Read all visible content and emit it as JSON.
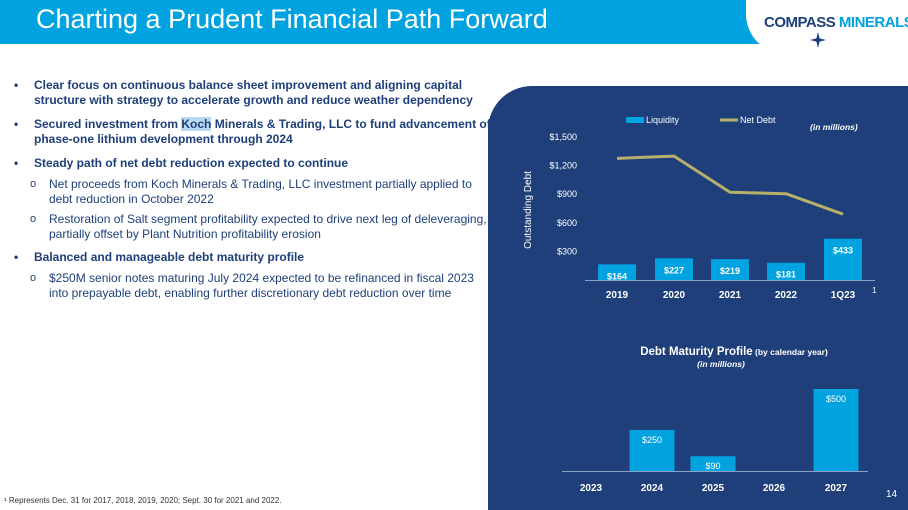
{
  "header": {
    "title": "Charting a Prudent Financial Path Forward"
  },
  "logo": {
    "part1": "COMPASS ",
    "part2": "MINERALS"
  },
  "bullets": {
    "b1": "Clear focus on continuous balance sheet improvement and aligning capital structure with strategy to accelerate growth and reduce weather dependency",
    "b2_pre": "Secured investment from ",
    "b2_hl": "Koch",
    "b2_post": " Minerals & Trading, LLC to fund advancement of phase-one lithium development through 2024",
    "b3": "Steady path of net debt reduction expected to continue",
    "b3_sub1": "Net proceeds from Koch Minerals & Trading, LLC investment partially applied to debt reduction in October 2022",
    "b3_sub2": "Restoration of Salt segment profitability expected to drive next leg of deleveraging, partially offset by Plant Nutrition profitability erosion",
    "b4": "Balanced and manageable debt maturity profile",
    "b4_sub1": "$250M senior notes maturing July 2024 expected to be refinanced in fiscal 2023 into prepayable debt, enabling further discretionary debt reduction over time",
    "marker": "•",
    "sub_marker": "o"
  },
  "footnote": "¹ Represents Dec. 31 for 2017, 2018, 2019, 2020; Sept. 30 for 2021 and 2022.",
  "page_number": "14",
  "colors": {
    "header": "#00a3e0",
    "navy": "#1e3f7a",
    "bar": "#00a3e0",
    "line": "#b5b06a"
  },
  "chart_data": [
    {
      "type": "bar",
      "categories": [
        "2019",
        "2020",
        "2021",
        "2022",
        "1Q23"
      ],
      "category_footnote": "1",
      "series": [
        {
          "name": "Liquidity",
          "values": [
            164,
            227,
            219,
            181,
            433
          ],
          "labels": [
            "$164",
            "$227",
            "$219",
            "$181",
            "$433"
          ]
        },
        {
          "name": "Net Debt",
          "type": "line",
          "values": [
            1275,
            1300,
            920,
            905,
            690
          ]
        }
      ],
      "ylabel": "Outstanding Debt",
      "units_note": "(in millions)",
      "yticks": [
        "$300",
        "$600",
        "$900",
        "$1,200",
        "$1,500"
      ],
      "ytick_values": [
        300,
        600,
        900,
        1200,
        1500
      ],
      "ylim": [
        0,
        1500
      ],
      "legend": "top",
      "grid": false
    },
    {
      "type": "bar",
      "title": "Debt Maturity Profile",
      "title_suffix": "(by calendar year)",
      "subtitle": "(in millions)",
      "categories": [
        "2023",
        "2024",
        "2025",
        "2026",
        "2027"
      ],
      "values": [
        0,
        250,
        90,
        0,
        500
      ],
      "labels": [
        "",
        "$250",
        "$90",
        "",
        "$500"
      ],
      "ylim": [
        0,
        500
      ],
      "grid": false
    }
  ]
}
